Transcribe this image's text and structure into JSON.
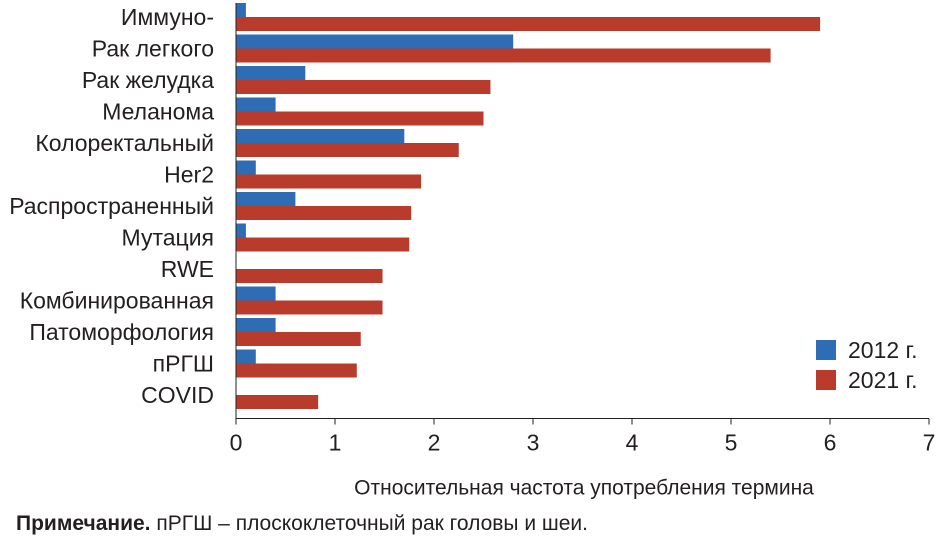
{
  "chart_data": {
    "type": "bar",
    "orientation": "horizontal",
    "categories": [
      "Иммуно-",
      "Рак легкого",
      "Рак желудка",
      "Меланома",
      "Колоректальный",
      "Her2",
      "Распространенный",
      "Мутация",
      "RWE",
      "Комбинированная",
      "Патоморфология",
      "пРГШ",
      "COVID"
    ],
    "series": [
      {
        "name": "2012 г.",
        "color": "#2e6db4",
        "values": [
          0.1,
          2.8,
          0.7,
          0.4,
          1.7,
          0.2,
          0.6,
          0.1,
          0,
          0.4,
          0.4,
          0.2,
          0
        ]
      },
      {
        "name": "2021 г.",
        "color": "#b83b2b",
        "values": [
          5.9,
          5.4,
          2.57,
          2.5,
          2.25,
          1.87,
          1.77,
          1.75,
          1.48,
          1.48,
          1.26,
          1.22,
          0.83
        ]
      }
    ],
    "xlabel": "Относительная частота употребления термина",
    "ylabel": "",
    "xlim": [
      0,
      7
    ],
    "xticks": [
      "0",
      "1",
      "2",
      "3",
      "4",
      "5",
      "6",
      "7"
    ],
    "legend_position": "bottom-right",
    "grid": false
  },
  "note": {
    "bold": "Примечание.",
    "text": " пРГШ – плоскоклеточный рак головы и шеи."
  }
}
